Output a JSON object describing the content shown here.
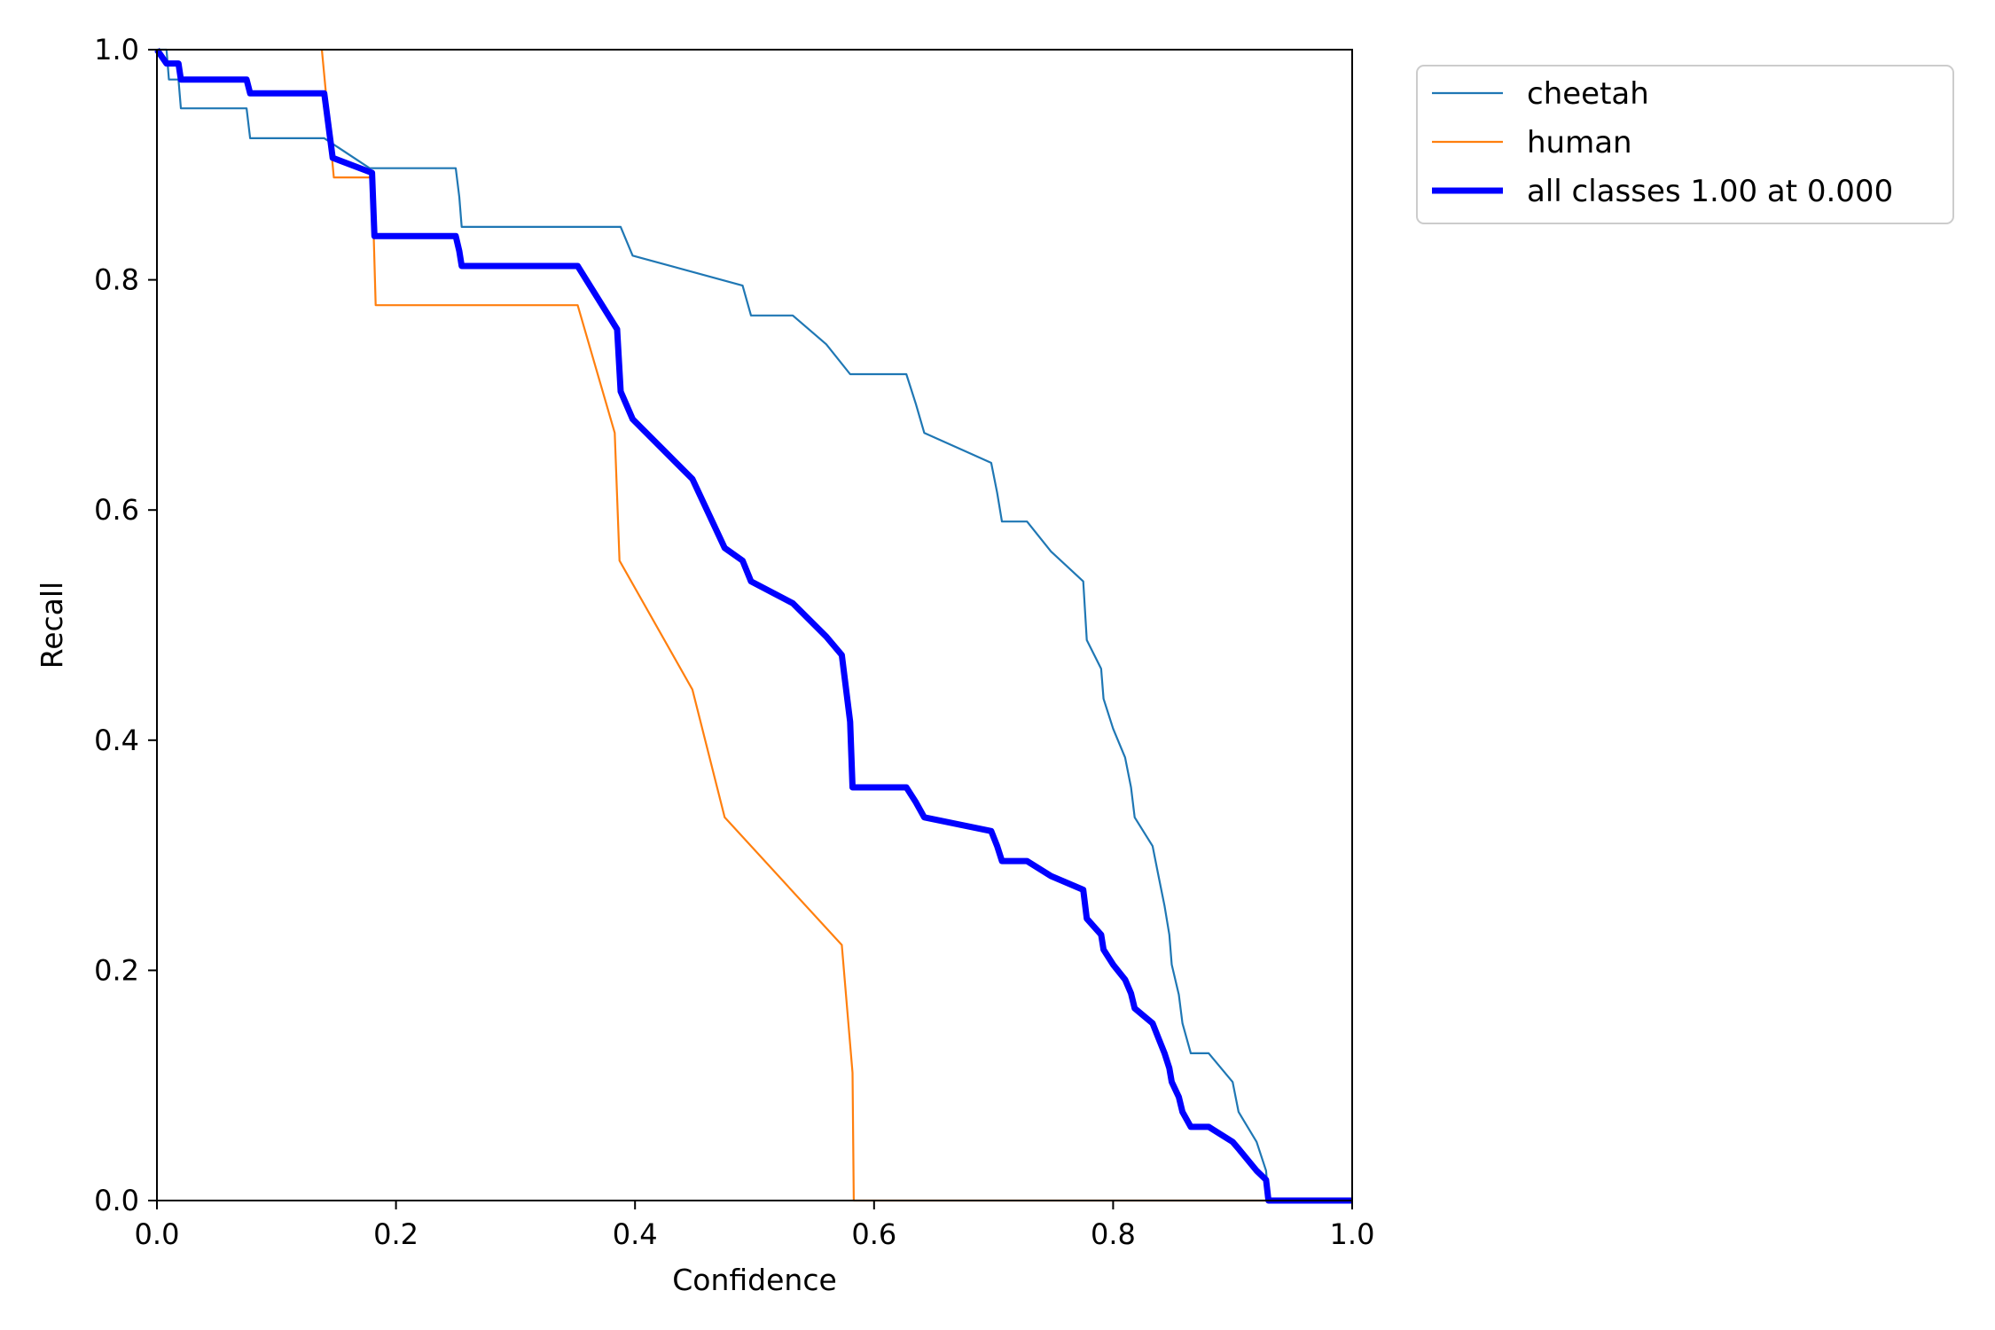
{
  "chart_data": {
    "type": "line",
    "title": "",
    "xlabel": "Confidence",
    "ylabel": "Recall",
    "xlim": [
      0,
      1
    ],
    "ylim": [
      0,
      1
    ],
    "grid": false,
    "legend_position": "outside-top-right",
    "x_ticks": [
      "0.0",
      "0.2",
      "0.4",
      "0.6",
      "0.8",
      "1.0"
    ],
    "y_ticks": [
      "0.0",
      "0.2",
      "0.4",
      "0.6",
      "0.8",
      "1.0"
    ],
    "series": [
      {
        "name": "cheetah",
        "color": "#1f77b4",
        "emphasis": "thin",
        "points": [
          [
            0,
            1.0
          ],
          [
            0.008,
            1.0
          ],
          [
            0.01,
            0.974
          ],
          [
            0.018,
            0.974
          ],
          [
            0.02,
            0.949
          ],
          [
            0.075,
            0.949
          ],
          [
            0.078,
            0.923
          ],
          [
            0.14,
            0.923
          ],
          [
            0.178,
            0.897
          ],
          [
            0.25,
            0.897
          ],
          [
            0.253,
            0.872
          ],
          [
            0.255,
            0.846
          ],
          [
            0.388,
            0.846
          ],
          [
            0.398,
            0.821
          ],
          [
            0.49,
            0.795
          ],
          [
            0.497,
            0.769
          ],
          [
            0.532,
            0.769
          ],
          [
            0.56,
            0.744
          ],
          [
            0.58,
            0.718
          ],
          [
            0.627,
            0.718
          ],
          [
            0.635,
            0.692
          ],
          [
            0.642,
            0.667
          ],
          [
            0.698,
            0.641
          ],
          [
            0.703,
            0.615
          ],
          [
            0.707,
            0.59
          ],
          [
            0.728,
            0.59
          ],
          [
            0.748,
            0.564
          ],
          [
            0.775,
            0.538
          ],
          [
            0.778,
            0.487
          ],
          [
            0.79,
            0.462
          ],
          [
            0.792,
            0.436
          ],
          [
            0.8,
            0.41
          ],
          [
            0.81,
            0.385
          ],
          [
            0.815,
            0.359
          ],
          [
            0.818,
            0.333
          ],
          [
            0.833,
            0.308
          ],
          [
            0.838,
            0.282
          ],
          [
            0.843,
            0.256
          ],
          [
            0.847,
            0.231
          ],
          [
            0.849,
            0.205
          ],
          [
            0.855,
            0.179
          ],
          [
            0.858,
            0.154
          ],
          [
            0.865,
            0.128
          ],
          [
            0.88,
            0.128
          ],
          [
            0.9,
            0.103
          ],
          [
            0.905,
            0.077
          ],
          [
            0.92,
            0.051
          ],
          [
            0.928,
            0.026
          ],
          [
            0.93,
            0.0
          ],
          [
            1.0,
            0.0
          ]
        ]
      },
      {
        "name": "human",
        "color": "#ff7f0e",
        "emphasis": "thin",
        "points": [
          [
            0.138,
            1.0
          ],
          [
            0.148,
            0.889
          ],
          [
            0.18,
            0.889
          ],
          [
            0.183,
            0.778
          ],
          [
            0.352,
            0.778
          ],
          [
            0.383,
            0.667
          ],
          [
            0.387,
            0.556
          ],
          [
            0.448,
            0.444
          ],
          [
            0.475,
            0.333
          ],
          [
            0.573,
            0.222
          ],
          [
            0.582,
            0.111
          ],
          [
            0.583,
            0.0
          ],
          [
            1.0,
            0.0
          ]
        ]
      },
      {
        "name": "all classes 1.00 at 0.000",
        "color": "#0000ff",
        "emphasis": "bold",
        "points": [
          [
            0,
            1.0
          ],
          [
            0.008,
            0.988
          ],
          [
            0.018,
            0.988
          ],
          [
            0.02,
            0.974
          ],
          [
            0.075,
            0.974
          ],
          [
            0.078,
            0.962
          ],
          [
            0.14,
            0.962
          ],
          [
            0.147,
            0.906
          ],
          [
            0.18,
            0.893
          ],
          [
            0.182,
            0.838
          ],
          [
            0.25,
            0.838
          ],
          [
            0.253,
            0.825
          ],
          [
            0.255,
            0.812
          ],
          [
            0.352,
            0.812
          ],
          [
            0.385,
            0.757
          ],
          [
            0.388,
            0.703
          ],
          [
            0.398,
            0.679
          ],
          [
            0.448,
            0.627
          ],
          [
            0.475,
            0.567
          ],
          [
            0.49,
            0.556
          ],
          [
            0.497,
            0.538
          ],
          [
            0.532,
            0.519
          ],
          [
            0.56,
            0.49
          ],
          [
            0.573,
            0.474
          ],
          [
            0.58,
            0.416
          ],
          [
            0.582,
            0.359
          ],
          [
            0.627,
            0.359
          ],
          [
            0.635,
            0.346
          ],
          [
            0.642,
            0.333
          ],
          [
            0.698,
            0.321
          ],
          [
            0.703,
            0.308
          ],
          [
            0.707,
            0.295
          ],
          [
            0.728,
            0.295
          ],
          [
            0.748,
            0.282
          ],
          [
            0.775,
            0.27
          ],
          [
            0.778,
            0.245
          ],
          [
            0.79,
            0.231
          ],
          [
            0.792,
            0.218
          ],
          [
            0.8,
            0.205
          ],
          [
            0.81,
            0.192
          ],
          [
            0.815,
            0.18
          ],
          [
            0.818,
            0.167
          ],
          [
            0.833,
            0.154
          ],
          [
            0.838,
            0.141
          ],
          [
            0.843,
            0.128
          ],
          [
            0.847,
            0.115
          ],
          [
            0.849,
            0.103
          ],
          [
            0.855,
            0.09
          ],
          [
            0.858,
            0.077
          ],
          [
            0.865,
            0.064
          ],
          [
            0.88,
            0.064
          ],
          [
            0.9,
            0.051
          ],
          [
            0.905,
            0.045
          ],
          [
            0.92,
            0.026
          ],
          [
            0.928,
            0.018
          ],
          [
            0.93,
            0.0
          ],
          [
            1.0,
            0.0
          ]
        ]
      }
    ]
  }
}
